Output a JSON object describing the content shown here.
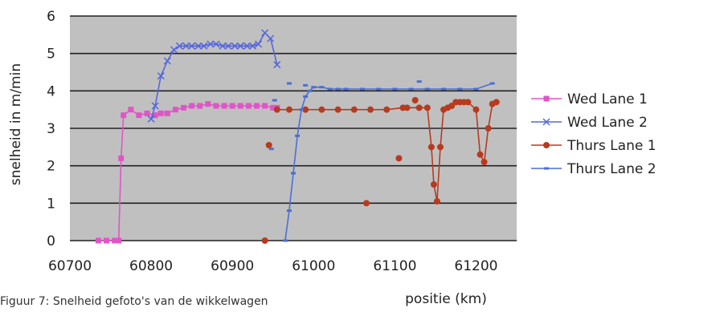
{
  "chart_data": {
    "type": "line",
    "title": "",
    "xlabel": "positie (km)",
    "ylabel": "snelheid in m/min",
    "xlim": [
      60700,
      61250
    ],
    "ylim": [
      0,
      6
    ],
    "xticks": [
      60700,
      60800,
      60900,
      61000,
      61100,
      61200
    ],
    "yticks": [
      0,
      1,
      2,
      3,
      4,
      5,
      6
    ],
    "grid": "horizontal",
    "background": "#c0c0c0",
    "legend_position": "right",
    "series": [
      {
        "name": "Wed Lane 1",
        "color": "#e055c8",
        "marker": "square",
        "x": [
          60735,
          60745,
          60755,
          60760,
          60763,
          60766,
          60775,
          60785,
          60795,
          60805,
          60812,
          60820,
          60830,
          60840,
          60850,
          60860,
          60870,
          60880,
          60890,
          60900,
          60910,
          60920,
          60930,
          60940,
          60950,
          60955
        ],
        "y": [
          0,
          0,
          0,
          0,
          2.2,
          3.35,
          3.5,
          3.35,
          3.4,
          3.35,
          3.4,
          3.4,
          3.5,
          3.55,
          3.6,
          3.6,
          3.65,
          3.6,
          3.6,
          3.6,
          3.6,
          3.6,
          3.6,
          3.6,
          3.55,
          3.55
        ]
      },
      {
        "name": "Wed Lane 2",
        "color": "#5566dd",
        "marker": "x",
        "x": [
          60800,
          60805,
          60812,
          60820,
          60828,
          60835,
          60843,
          60850,
          60858,
          60865,
          60873,
          60880,
          60888,
          60895,
          60903,
          60910,
          60918,
          60925,
          60932,
          60940,
          60947,
          60955
        ],
        "y": [
          3.25,
          3.6,
          4.4,
          4.8,
          5.1,
          5.2,
          5.2,
          5.2,
          5.2,
          5.2,
          5.25,
          5.25,
          5.2,
          5.2,
          5.2,
          5.2,
          5.2,
          5.2,
          5.25,
          5.55,
          5.4,
          4.7
        ]
      },
      {
        "name": "Thurs Lane 1",
        "color": "#b83a1e",
        "marker": "circle",
        "x": [
          60955,
          60970,
          60990,
          61010,
          61030,
          61050,
          61070,
          61090,
          61110,
          61130,
          61140,
          61145,
          61148,
          61152,
          61156,
          61160,
          61165,
          61170,
          61175,
          61180,
          61185,
          61190,
          61200,
          61205,
          61210,
          61215,
          61220,
          61225
        ],
        "y": [
          3.5,
          3.5,
          3.5,
          3.5,
          3.5,
          3.5,
          3.5,
          3.5,
          3.55,
          3.55,
          3.55,
          2.5,
          1.5,
          1.05,
          2.5,
          3.5,
          3.55,
          3.6,
          3.7,
          3.7,
          3.7,
          3.7,
          3.5,
          2.3,
          2.1,
          3.0,
          3.65,
          3.7
        ]
      },
      {
        "name": "Thurs Lane 2",
        "color": "#4a6fd6",
        "marker": "dot",
        "x": [
          60965,
          60970,
          60975,
          60980,
          60985,
          60990,
          60995,
          61000,
          61010,
          61020,
          61030,
          61040,
          61060,
          61080,
          61100,
          61120,
          61140,
          61160,
          61180,
          61200,
          61220
        ],
        "y": [
          0,
          0.8,
          1.8,
          2.8,
          3.5,
          3.85,
          4.0,
          4.1,
          4.1,
          4.05,
          4.05,
          4.05,
          4.05,
          4.05,
          4.05,
          4.05,
          4.05,
          4.05,
          4.05,
          4.05,
          4.2
        ]
      }
    ],
    "scatter_points": [
      {
        "series": "Thurs Lane 1",
        "x": 60940,
        "y": 0
      },
      {
        "series": "Thurs Lane 1",
        "x": 60945,
        "y": 2.55
      },
      {
        "series": "Thurs Lane 1",
        "x": 61065,
        "y": 1.0
      },
      {
        "series": "Thurs Lane 1",
        "x": 61105,
        "y": 2.2
      },
      {
        "series": "Thurs Lane 1",
        "x": 61115,
        "y": 3.55
      },
      {
        "series": "Thurs Lane 1",
        "x": 61125,
        "y": 3.75
      },
      {
        "series": "Thurs Lane 2",
        "x": 60948,
        "y": 2.45
      },
      {
        "series": "Thurs Lane 2",
        "x": 60952,
        "y": 3.75
      },
      {
        "series": "Thurs Lane 2",
        "x": 60970,
        "y": 4.2
      },
      {
        "series": "Thurs Lane 2",
        "x": 60990,
        "y": 4.15
      },
      {
        "series": "Thurs Lane 2",
        "x": 61130,
        "y": 4.25
      }
    ]
  },
  "caption": "Figuur 7: Snelheid gefoto's van de wikkelwagen"
}
